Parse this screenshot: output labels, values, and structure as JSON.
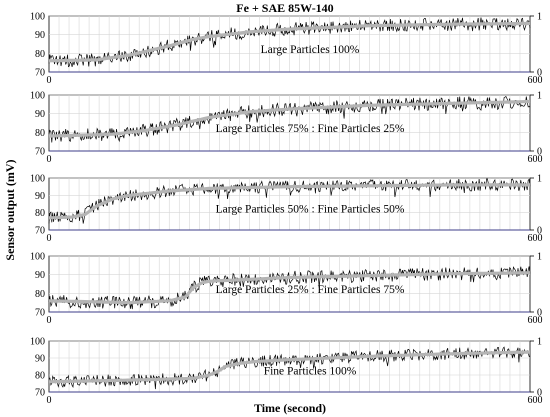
{
  "figure": {
    "title": "Fe + SAE 85W-140",
    "xlabel": "Time (second)",
    "ylabel": "Sensor output (mV)"
  },
  "colors": {
    "raw_signal": "#000000",
    "smoothed_signal": "#b4b4b4",
    "grid": "#d6d6d6",
    "baseline": "#3d3d8a",
    "frame": "#000000"
  },
  "chart_data": [
    {
      "type": "line",
      "annotation": "Large Particles 100%",
      "xlim": [
        0,
        600
      ],
      "x_ticks": [
        "0",
        "600"
      ],
      "ylim": [
        70,
        100
      ],
      "y_ticks": [
        "70",
        "80",
        "90",
        "100"
      ],
      "y2lim": [
        0,
        1
      ],
      "y2_ticks": [
        "0",
        "1"
      ],
      "grid": true,
      "trend": {
        "x": [
          0,
          60,
          100,
          150,
          180,
          200,
          250,
          300,
          400,
          500,
          600
        ],
        "y": [
          76,
          76.5,
          79,
          84,
          87.5,
          89,
          91.5,
          93,
          94.8,
          95.6,
          96
        ]
      },
      "noise_amplitude": 3.5
    },
    {
      "type": "line",
      "annotation": "Large Particles 75% : Fine Particles 25%",
      "xlim": [
        0,
        600
      ],
      "x_ticks": [
        "0",
        "600"
      ],
      "ylim": [
        70,
        100
      ],
      "y_ticks": [
        "70",
        "80",
        "90",
        "100"
      ],
      "y2lim": [
        0,
        1
      ],
      "y2_ticks": [
        "0",
        "1"
      ],
      "grid": true,
      "trend": {
        "x": [
          0,
          80,
          120,
          160,
          200,
          250,
          300,
          400,
          500,
          600
        ],
        "y": [
          78,
          79,
          81,
          84,
          88,
          91,
          92.5,
          94.5,
          95.5,
          96.5
        ]
      },
      "noise_amplitude": 3.5
    },
    {
      "type": "line",
      "annotation": "Large Particles 50% : Fine Particles 50%",
      "xlim": [
        0,
        600
      ],
      "x_ticks": [
        "0",
        "600"
      ],
      "ylim": [
        70,
        100
      ],
      "y_ticks": [
        "70",
        "80",
        "90",
        "100"
      ],
      "y2lim": [
        0,
        1
      ],
      "y2_ticks": [
        "0",
        "1"
      ],
      "grid": true,
      "trend": {
        "x": [
          0,
          30,
          45,
          60,
          80,
          100,
          150,
          200,
          300,
          400,
          500,
          600
        ],
        "y": [
          77,
          77.5,
          79,
          84,
          88,
          90,
          92.5,
          94,
          95,
          95.5,
          96,
          96
        ]
      },
      "noise_amplitude": 3.5
    },
    {
      "type": "line",
      "annotation": "Large Particles 25% : Fine Particles 75%",
      "xlim": [
        0,
        600
      ],
      "x_ticks": [
        "0",
        "600"
      ],
      "ylim": [
        70,
        100
      ],
      "y_ticks": [
        "70",
        "80",
        "90",
        "100"
      ],
      "y2lim": [
        0,
        1
      ],
      "y2_ticks": [
        "0",
        "1"
      ],
      "grid": true,
      "trend": {
        "x": [
          0,
          100,
          150,
          170,
          180,
          190,
          200,
          250,
          300,
          400,
          500,
          600
        ],
        "y": [
          76,
          75,
          76,
          78,
          83,
          85.5,
          86.5,
          87.5,
          88.5,
          89.5,
          90.5,
          91
        ]
      },
      "noise_amplitude": 3.5
    },
    {
      "type": "line",
      "annotation": "Fine Particles 100%",
      "xlim": [
        0,
        600
      ],
      "x_ticks": [
        "0",
        "600"
      ],
      "ylim": [
        70,
        100
      ],
      "y_ticks": [
        "70",
        "80",
        "90",
        "100"
      ],
      "y2lim": [
        0,
        1
      ],
      "y2_ticks": [
        "0",
        "1"
      ],
      "grid": true,
      "trend": {
        "x": [
          0,
          100,
          180,
          200,
          210,
          220,
          240,
          260,
          300,
          400,
          500,
          600
        ],
        "y": [
          76,
          77,
          78,
          80,
          82,
          85,
          87,
          88,
          89,
          91,
          92.5,
          93.5
        ]
      },
      "noise_amplitude": 3.5
    }
  ]
}
